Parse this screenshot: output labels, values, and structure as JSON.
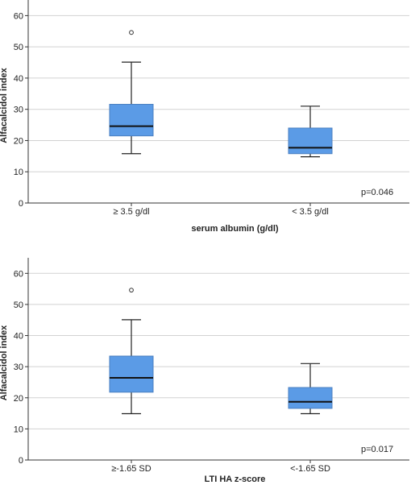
{
  "chart_data": [
    {
      "type": "boxplot",
      "ylabel": "Alfacalcidol index",
      "xlabel": "serum albumin (g/dl)",
      "ylim": [
        0,
        65
      ],
      "yticks": [
        0,
        10,
        20,
        30,
        40,
        50,
        60
      ],
      "grid": "horizontal",
      "annotation": "p=0.046",
      "categories": [
        "≥ 3.5 g/dl",
        "< 3.5 g/dl"
      ],
      "boxes": [
        {
          "whisker_low": 15.8,
          "q1": 21.5,
          "median": 24.6,
          "q3": 31.6,
          "whisker_high": 45.1,
          "outliers": [
            54.6
          ]
        },
        {
          "whisker_low": 14.8,
          "q1": 15.8,
          "median": 17.7,
          "q3": 24.0,
          "whisker_high": 31.0,
          "outliers": []
        }
      ],
      "colors": {
        "box_fill": "#5b9be6",
        "box_stroke": "#4a7fc0",
        "grid": "#d2d2d2"
      }
    },
    {
      "type": "boxplot",
      "ylabel": "Alfacalcidol index",
      "xlabel": "LTI HA z-score",
      "ylim": [
        0,
        65
      ],
      "yticks": [
        0,
        10,
        20,
        30,
        40,
        50,
        60
      ],
      "grid": "horizontal",
      "annotation": "p=0.017",
      "categories": [
        "≥-1.65 SD",
        "<-1.65 SD"
      ],
      "boxes": [
        {
          "whisker_low": 14.9,
          "q1": 21.8,
          "median": 26.4,
          "q3": 33.4,
          "whisker_high": 45.1,
          "outliers": [
            54.6
          ]
        },
        {
          "whisker_low": 14.9,
          "q1": 16.6,
          "median": 18.7,
          "q3": 23.3,
          "whisker_high": 31.0,
          "outliers": []
        }
      ],
      "colors": {
        "box_fill": "#5b9be6",
        "box_stroke": "#4a7fc0",
        "grid": "#d2d2d2"
      }
    }
  ]
}
